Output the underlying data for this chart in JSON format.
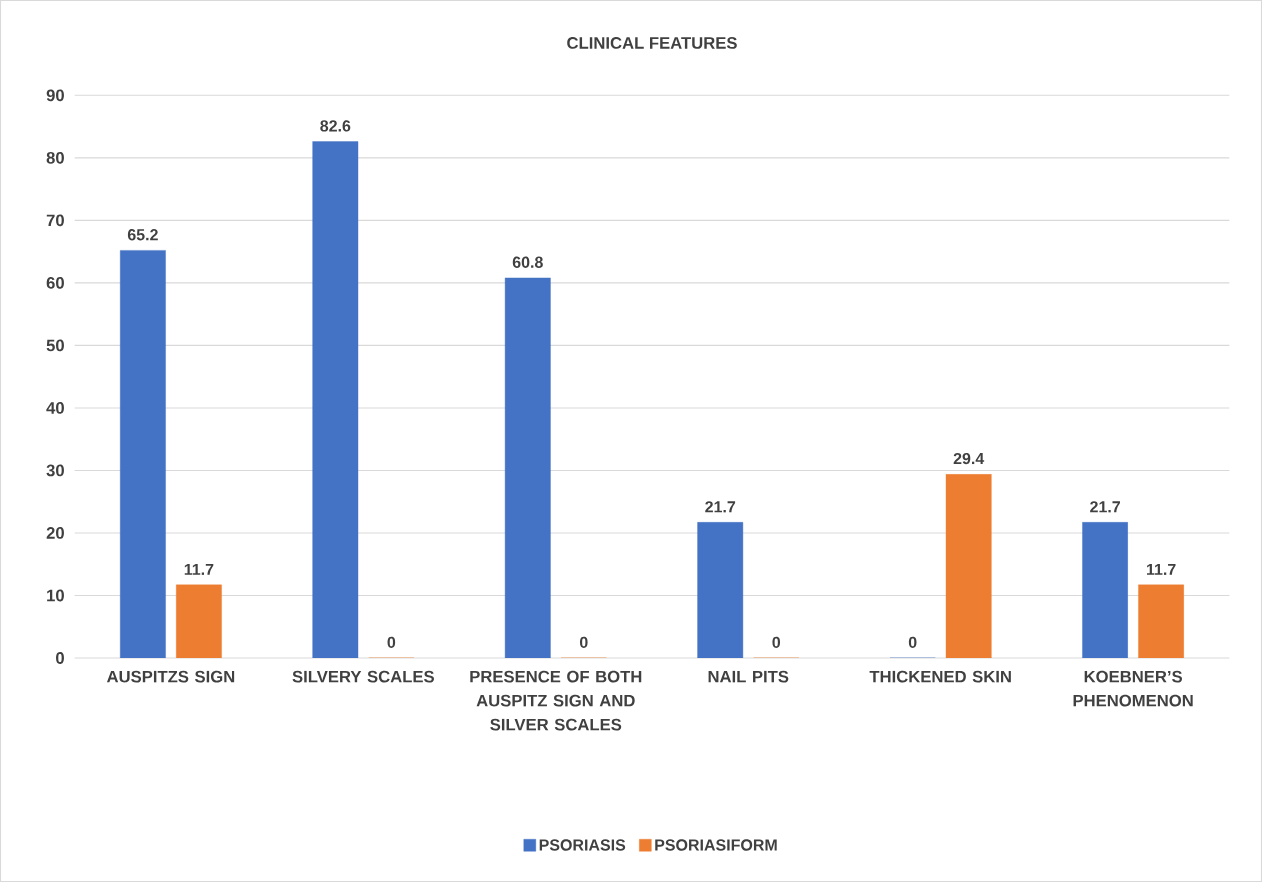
{
  "chart_data": {
    "type": "bar",
    "title": "CLINICAL FEATURES",
    "categories": [
      "AUSPITZS SIGN",
      "SILVERY SCALES",
      "PRESENCE OF BOTH AUSPITZ SIGN AND SILVER SCALES",
      "NAIL PITS",
      "THICKENED SKIN",
      "KOEBNER’S PHENOMENON"
    ],
    "series": [
      {
        "name": "PSORIASIS",
        "color": "#4472c4",
        "values": [
          65.2,
          82.6,
          60.8,
          21.7,
          0,
          21.7
        ]
      },
      {
        "name": "PSORIASIFORM",
        "color": "#ed7d31",
        "values": [
          11.7,
          0,
          0,
          0,
          29.4,
          11.7
        ]
      }
    ],
    "ylim": [
      0,
      90
    ],
    "yticks": [
      0,
      10,
      20,
      30,
      40,
      50,
      60,
      70,
      80,
      90
    ],
    "grid": "y",
    "legend": "bottom",
    "data_labels": true
  }
}
